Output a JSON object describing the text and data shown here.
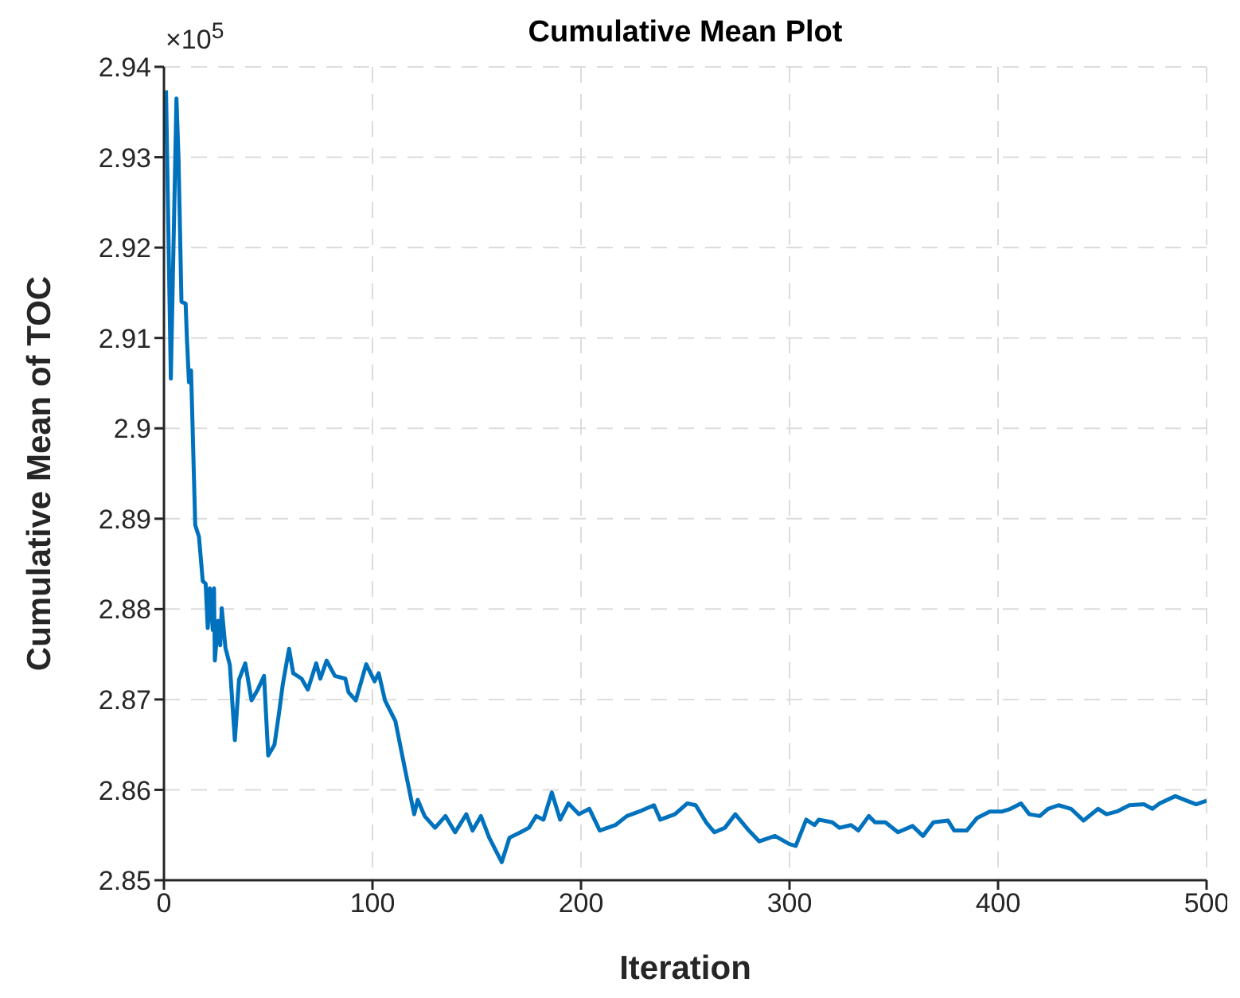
{
  "chart_data": {
    "type": "line",
    "title": "Cumulative Mean Plot",
    "xlabel": "Iteration",
    "ylabel": "Cumulative Mean of TOC",
    "annotations": [
      "×10$^{5}$"
    ],
    "x": [
      1,
      3.3,
      6,
      7,
      8.4,
      10.4,
      11,
      12,
      13,
      15,
      16.8,
      18.6,
      20,
      21,
      22,
      23.4,
      24,
      24.4,
      26,
      27,
      27.7,
      29.5,
      31.6,
      34,
      36,
      39,
      42,
      45,
      48,
      50,
      53,
      55,
      57,
      60,
      62,
      66,
      69,
      73,
      75,
      78,
      82,
      87,
      88.5,
      92,
      97,
      101,
      103,
      106,
      111,
      115.5,
      120,
      121.7,
      125,
      130,
      135,
      139.6,
      145,
      148,
      152,
      156,
      162,
      165.7,
      171,
      175,
      178.5,
      182,
      186,
      190,
      194,
      199,
      204,
      209,
      216.5,
      222,
      229,
      235,
      238,
      245,
      251,
      255,
      260,
      264,
      269,
      274,
      280.5,
      285.5,
      293,
      300,
      303,
      308,
      312,
      314,
      320.5,
      324,
      329.5,
      333,
      338,
      341,
      346,
      352,
      359,
      364,
      369,
      376,
      379,
      385,
      390,
      396,
      402,
      406,
      411,
      415,
      420,
      424,
      429,
      435,
      441,
      448,
      452,
      457,
      463,
      470,
      474,
      477.5,
      485,
      490.5,
      495,
      500
    ],
    "series": [
      {
        "color": "#0072bd",
        "values": [
          2.9374,
          2.9055,
          2.9365,
          2.9298,
          2.914,
          2.9138,
          2.91,
          2.9051,
          2.9064,
          2.8893,
          2.888,
          2.8831,
          2.8828,
          2.8779,
          2.8823,
          2.8777,
          2.8823,
          2.8743,
          2.8787,
          2.876,
          2.8801,
          2.8757,
          2.8738,
          2.8655,
          2.8722,
          2.874,
          2.8699,
          2.8711,
          2.8726,
          2.8638,
          2.865,
          2.8682,
          2.8717,
          2.8756,
          2.8729,
          2.8723,
          2.8711,
          2.874,
          2.8723,
          2.8743,
          2.8726,
          2.8723,
          2.8708,
          2.8699,
          2.8739,
          2.872,
          2.8729,
          2.8699,
          2.8676,
          2.8624,
          2.8573,
          2.8589,
          2.8571,
          2.8558,
          2.8571,
          2.8553,
          2.8573,
          2.8555,
          2.8571,
          2.8547,
          2.852,
          2.8547,
          2.8553,
          2.8558,
          2.8571,
          2.8567,
          2.8597,
          2.8567,
          2.8585,
          2.8573,
          2.8579,
          2.8555,
          2.8561,
          2.8571,
          2.8577,
          2.8583,
          2.8567,
          2.8573,
          2.8585,
          2.8583,
          2.8564,
          2.8553,
          2.8558,
          2.8573,
          2.8555,
          2.8543,
          2.8549,
          2.854,
          2.8538,
          2.8567,
          2.8561,
          2.8567,
          2.8564,
          2.8558,
          2.8561,
          2.8555,
          2.8571,
          2.8564,
          2.8564,
          2.8553,
          2.856,
          2.8549,
          2.8564,
          2.8566,
          2.8555,
          2.8555,
          2.8569,
          2.8576,
          2.8576,
          2.8579,
          2.8585,
          2.8573,
          2.8571,
          2.8579,
          2.8583,
          2.8579,
          2.8566,
          2.8579,
          2.8573,
          2.8576,
          2.8583,
          2.8584,
          2.8579,
          2.8585,
          2.8593,
          2.8588,
          2.8584,
          2.8588
        ]
      }
    ],
    "xlim": [
      0,
      500
    ],
    "xticks": [
      0,
      100,
      200,
      300,
      400,
      500
    ],
    "ylim": [
      2.85,
      2.94
    ],
    "yticks": [
      2.85,
      2.86,
      2.87,
      2.88,
      2.89,
      2.9,
      2.91,
      2.92,
      2.93,
      2.94
    ],
    "grid": true,
    "legend": false,
    "marker": "none",
    "line_style": "solid"
  }
}
